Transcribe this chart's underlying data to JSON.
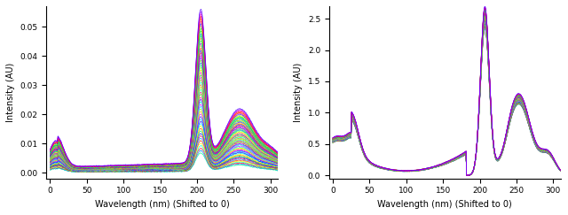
{
  "xlabel": "Wavelength (nm) (Shifted to 0)",
  "ylabel": "Intensity (AU)",
  "xlim": [
    -5,
    310
  ],
  "left_ylim": [
    -0.002,
    0.057
  ],
  "right_ylim": [
    -0.05,
    2.7
  ],
  "left_yticks": [
    0.0,
    0.01,
    0.02,
    0.03,
    0.04,
    0.05
  ],
  "right_yticks": [
    0.0,
    0.5,
    1.0,
    1.5,
    2.0,
    2.5
  ],
  "xticks": [
    0,
    50,
    100,
    150,
    200,
    250,
    300
  ],
  "n_curves": 60,
  "background_color": "#ffffff"
}
